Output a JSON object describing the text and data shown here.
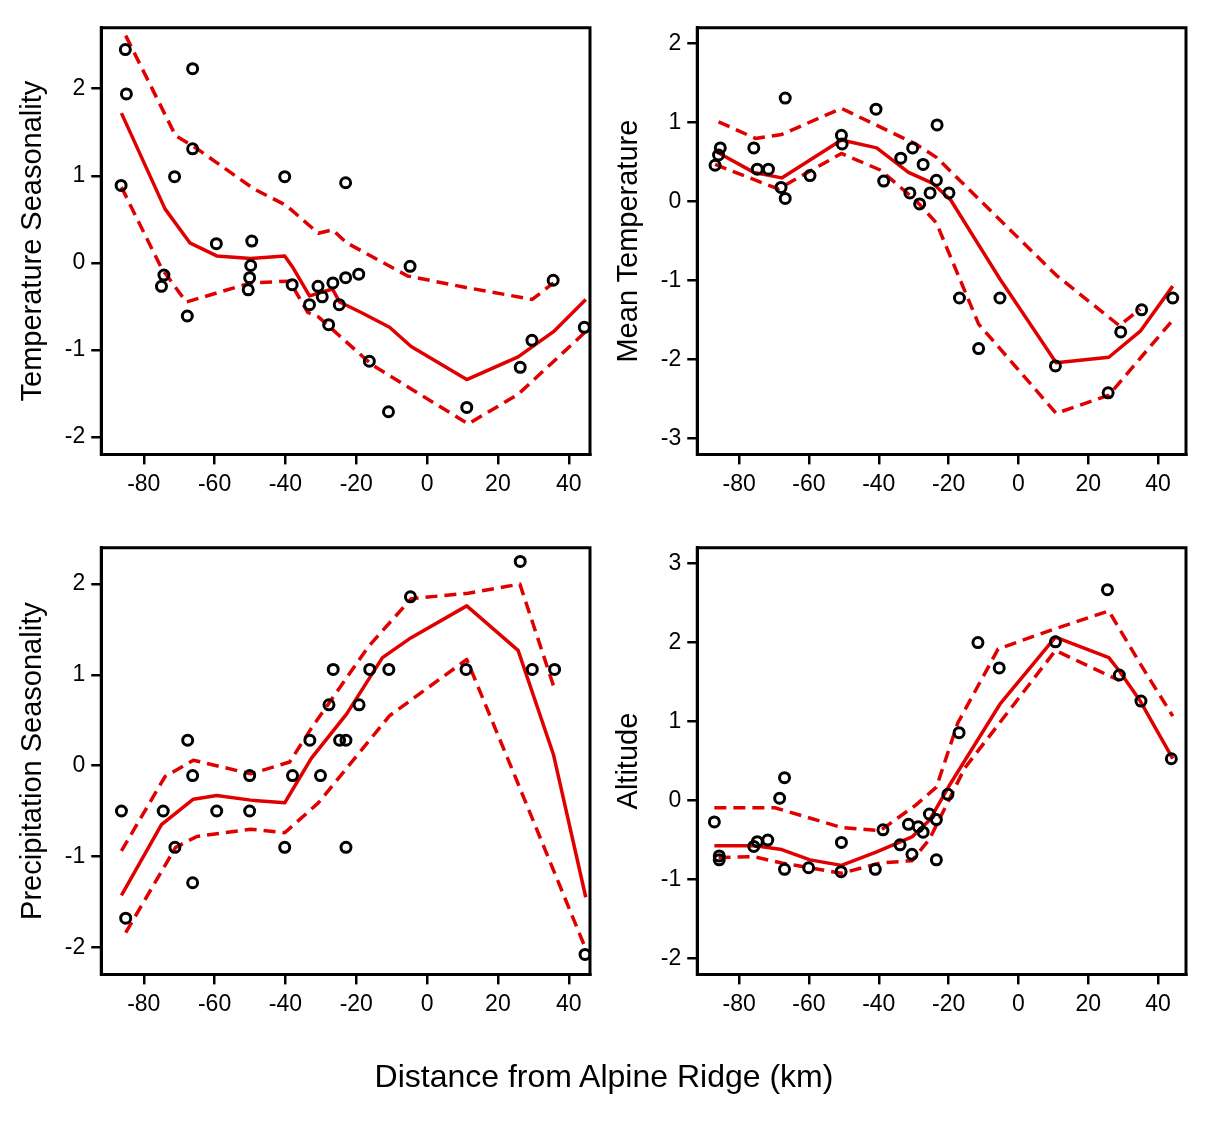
{
  "chart_data": [
    {
      "type": "scatter",
      "ylabel": "Temperature Seasonality",
      "xlim": [
        -92,
        46
      ],
      "ylim": [
        -2.2,
        2.7
      ],
      "xticks": [
        -80,
        -60,
        -40,
        -20,
        0,
        20,
        40
      ],
      "yticks": [
        -2,
        -1,
        0,
        1,
        2
      ],
      "grid": false,
      "legend": false,
      "series": [
        {
          "type": "scatter",
          "color": "#000000",
          "marker": "circle",
          "x": [
            -85.2,
            -84.9,
            -66.2,
            -66.2,
            -86.4,
            -71.3,
            -40.2,
            -23,
            -59.5,
            -49.5,
            -49.8,
            -50.1,
            -50.5,
            -74.3,
            -75,
            -67.7,
            -38.1,
            -30.8,
            -29.6,
            -26.6,
            -33.2,
            -24.8,
            -23,
            -19.3,
            -27.8,
            -16.3,
            -10.9,
            -4.8,
            11.2,
            26.3,
            29.6,
            35.6,
            44.4
          ],
          "values": [
            2.45,
            1.94,
            2.23,
            1.31,
            0.89,
            0.99,
            0.99,
            0.92,
            0.22,
            0.25,
            -0.03,
            -0.17,
            -0.31,
            -0.14,
            -0.27,
            -0.61,
            -0.25,
            -0.27,
            -0.39,
            -0.23,
            -0.48,
            -0.48,
            -0.17,
            -0.13,
            -0.71,
            -1.13,
            -1.71,
            -0.04,
            -1.66,
            -1.2,
            -0.89,
            -0.2,
            -0.74
          ]
        },
        {
          "type": "line",
          "color": "#e00000",
          "line_style": "solid",
          "marker": "none",
          "x": [
            -86.3,
            -74,
            -67,
            -59.4,
            -49.8,
            -40.2,
            -37.8,
            -33.2,
            -26.7,
            -24.7,
            -18.6,
            -10.6,
            -4.5,
            11.2,
            25.7,
            35.7,
            44.8
          ],
          "values": [
            1.72,
            0.62,
            0.23,
            0.08,
            0.05,
            0.08,
            -0.06,
            -0.38,
            -0.3,
            -0.45,
            -0.57,
            -0.74,
            -0.96,
            -1.34,
            -1.08,
            -0.79,
            -0.42
          ]
        },
        {
          "type": "line",
          "color": "#e00000",
          "line_style": "dashed",
          "marker": "none",
          "x": [
            -85.1,
            -71,
            -66,
            -48.9,
            -39.8,
            -30.7,
            -26.7,
            -22.7,
            -5.5,
            10.6,
            29.7,
            35.7
          ],
          "values": [
            2.61,
            1.46,
            1.34,
            0.85,
            0.66,
            0.34,
            0.38,
            0.23,
            -0.15,
            -0.28,
            -0.42,
            -0.23
          ]
        },
        {
          "type": "line",
          "color": "#e00000",
          "line_style": "dashed",
          "marker": "none",
          "x": [
            -86.3,
            -75,
            -68,
            -49.8,
            -38.8,
            -33.7,
            -30.7,
            -15.6,
            11.6,
            25.7,
            44.8
          ],
          "values": [
            0.87,
            -0.06,
            -0.45,
            -0.23,
            -0.21,
            -0.57,
            -0.62,
            -1.17,
            -1.85,
            -1.51,
            -0.79
          ]
        }
      ]
    },
    {
      "type": "scatter",
      "ylabel": "Mean Temperature",
      "xlim": [
        -92,
        48
      ],
      "ylim": [
        -3.2,
        2.2
      ],
      "xticks": [
        -80,
        -60,
        -40,
        -20,
        0,
        20,
        40
      ],
      "yticks": [
        -3,
        -2,
        -1,
        0,
        1,
        2
      ],
      "grid": false,
      "legend": false,
      "series": [
        {
          "type": "scatter",
          "color": "#000000",
          "marker": "circle",
          "x": [
            -86.9,
            -85.4,
            -85.9,
            -75.8,
            -74.8,
            -71.6,
            -66.8,
            -68,
            -66.8,
            -59.7,
            -50.7,
            -50.5,
            -40.8,
            -38.6,
            -33.7,
            -30.3,
            -31.1,
            -28.3,
            -27.3,
            -25.3,
            -23.5,
            -23.3,
            -19.9,
            -16.9,
            -11.4,
            -5.3,
            10.6,
            25.7,
            29.3,
            35.3,
            44.2
          ],
          "values": [
            0.46,
            0.68,
            0.59,
            0.68,
            0.41,
            0.41,
            1.31,
            0.18,
            0.04,
            0.33,
            0.84,
            0.73,
            1.17,
            0.26,
            0.55,
            0.68,
            0.11,
            -0.03,
            0.47,
            0.11,
            0.27,
            0.97,
            0.11,
            -1.22,
            -1.86,
            -1.22,
            -2.08,
            -2.42,
            -1.65,
            -1.37,
            -1.22
          ]
        },
        {
          "type": "line",
          "color": "#e00000",
          "line_style": "solid",
          "marker": "none",
          "x": [
            -86.9,
            -75.8,
            -67.8,
            -50.7,
            -40.6,
            -31.5,
            -24.5,
            -19.4,
            -5.3,
            10.8,
            25.9,
            34.9,
            44.2
          ],
          "values": [
            0.64,
            0.37,
            0.3,
            0.78,
            0.68,
            0.37,
            0.23,
            0.02,
            -0.98,
            -2.04,
            -1.97,
            -1.64,
            -1.07
          ]
        },
        {
          "type": "line",
          "color": "#e00000",
          "line_style": "dashed",
          "marker": "none",
          "x": [
            -85.9,
            -75.3,
            -67.8,
            -50.7,
            -29.5,
            -23.5,
            10.8,
            28.9,
            34.9
          ],
          "values": [
            1.01,
            0.8,
            0.85,
            1.18,
            0.73,
            0.56,
            -0.93,
            -1.57,
            -1.36
          ]
        },
        {
          "type": "line",
          "color": "#e00000",
          "line_style": "dashed",
          "marker": "none",
          "x": [
            -86.9,
            -68.8,
            -50.7,
            -39.6,
            -29.5,
            -23.5,
            -11.4,
            10.8,
            25.9,
            44.2
          ],
          "values": [
            0.47,
            0.16,
            0.61,
            0.4,
            0.02,
            -0.27,
            -1.55,
            -2.68,
            -2.45,
            -1.5
          ]
        }
      ]
    },
    {
      "type": "scatter",
      "ylabel": "Precipitation Seasonality",
      "xlabel": "Distance from Alpine Ridge (km)",
      "xlim": [
        -92,
        46
      ],
      "ylim": [
        -2.3,
        2.4
      ],
      "xticks": [
        -80,
        -60,
        -40,
        -20,
        0,
        20,
        40
      ],
      "yticks": [
        -2,
        -1,
        0,
        1,
        2
      ],
      "grid": false,
      "legend": false,
      "series": [
        {
          "type": "scatter",
          "color": "#000000",
          "marker": "circle",
          "x": [
            -86.3,
            -85.1,
            -74.5,
            -71.2,
            -67.6,
            -66.2,
            -66.2,
            -59.4,
            -50.1,
            -50.1,
            -40.2,
            -38,
            -33.1,
            -30.1,
            -27.7,
            -26.5,
            -24.7,
            -22.9,
            -22.9,
            -19.2,
            -16.2,
            -10.8,
            -4.7,
            11,
            26.3,
            29.7,
            36,
            44.6
          ],
          "values": [
            -0.5,
            -1.68,
            -0.5,
            -0.9,
            0.28,
            -0.11,
            -1.29,
            -0.5,
            -0.11,
            -0.5,
            -0.9,
            -0.11,
            0.28,
            -0.11,
            0.67,
            1.06,
            0.28,
            0.28,
            -0.9,
            0.67,
            1.06,
            1.06,
            1.86,
            1.06,
            2.25,
            1.06,
            1.06,
            -2.08
          ]
        },
        {
          "type": "line",
          "color": "#e00000",
          "line_style": "solid",
          "marker": "none",
          "x": [
            -86.3,
            -75,
            -66,
            -59.4,
            -49.8,
            -40.2,
            -32.7,
            -22.7,
            -12.6,
            -4.5,
            11.2,
            25.7,
            35.7,
            44.8
          ],
          "values": [
            -1.43,
            -0.65,
            -0.37,
            -0.33,
            -0.38,
            -0.41,
            0.08,
            0.57,
            1.19,
            1.41,
            1.76,
            1.27,
            0.12,
            -1.45
          ]
        },
        {
          "type": "line",
          "color": "#e00000",
          "line_style": "dashed",
          "marker": "none",
          "x": [
            -86.3,
            -74,
            -66,
            -49.8,
            -38.8,
            -32.7,
            -16.6,
            -4.5,
            11.6,
            26.2,
            35.7
          ],
          "values": [
            -0.94,
            -0.12,
            0.06,
            -0.09,
            0.04,
            0.41,
            1.31,
            1.84,
            1.9,
            2,
            0.88
          ]
        },
        {
          "type": "line",
          "color": "#e00000",
          "line_style": "dashed",
          "marker": "none",
          "x": [
            -85.1,
            -71,
            -65,
            -49.8,
            -40.2,
            -30.7,
            -10.6,
            11.2,
            25.7,
            44.8
          ],
          "values": [
            -1.84,
            -0.9,
            -0.78,
            -0.7,
            -0.74,
            -0.41,
            0.55,
            1.17,
            -0.2,
            -2.02
          ]
        }
      ]
    },
    {
      "type": "scatter",
      "ylabel": "Altitude",
      "xlim": [
        -92,
        48
      ],
      "ylim": [
        -2.2,
        3.2
      ],
      "xticks": [
        -80,
        -60,
        -40,
        -20,
        0,
        20,
        40
      ],
      "yticks": [
        -2,
        -1,
        0,
        1,
        2,
        3
      ],
      "grid": false,
      "legend": false,
      "series": [
        {
          "type": "scatter",
          "color": "#000000",
          "marker": "circle",
          "x": [
            -87.1,
            -85.7,
            -85.7,
            -75.8,
            -74.8,
            -71.8,
            -68.4,
            -67,
            -67,
            -60.1,
            -50.7,
            -50.8,
            -41,
            -38.8,
            -33.9,
            -31.5,
            -30.5,
            -28.7,
            -27.3,
            -25.5,
            -23.5,
            -23.5,
            -20.2,
            -17,
            -11.6,
            -5.5,
            10.6,
            25.5,
            28.9,
            35.1,
            43.8
          ],
          "values": [
            -0.27,
            -0.7,
            -0.75,
            -0.58,
            -0.52,
            -0.5,
            0.03,
            0.29,
            -0.87,
            -0.85,
            -0.53,
            -0.9,
            -0.87,
            -0.37,
            -0.56,
            -0.3,
            -0.68,
            -0.33,
            -0.4,
            -0.17,
            -0.24,
            -0.75,
            0.08,
            0.86,
            2,
            1.68,
            2.01,
            2.67,
            1.59,
            1.26,
            0.53
          ]
        },
        {
          "type": "line",
          "color": "#e00000",
          "line_style": "solid",
          "marker": "none",
          "x": [
            -87.1,
            -75.8,
            -67.8,
            -59.7,
            -50.7,
            -40.6,
            -30.5,
            -25.5,
            -19.4,
            -5.3,
            10.6,
            25.9,
            28.9,
            34.9,
            44.2
          ],
          "values": [
            -0.57,
            -0.57,
            -0.62,
            -0.75,
            -0.82,
            -0.65,
            -0.46,
            -0.25,
            0.22,
            1.22,
            2.07,
            1.81,
            1.64,
            1.26,
            0.53
          ]
        },
        {
          "type": "line",
          "color": "#e00000",
          "line_style": "dashed",
          "marker": "none",
          "x": [
            -87.1,
            -69.8,
            -50.7,
            -39.6,
            -29.5,
            -23.5,
            -17.4,
            -5.8,
            10.8,
            25.9,
            34.9,
            44.2
          ],
          "values": [
            -0.09,
            -0.09,
            -0.34,
            -0.38,
            -0.06,
            0.17,
            0.98,
            1.92,
            2.18,
            2.4,
            1.73,
            1.07
          ]
        },
        {
          "type": "line",
          "color": "#e00000",
          "line_style": "dashed",
          "marker": "none",
          "x": [
            -85.9,
            -75.8,
            -67.8,
            -50.7,
            -39.6,
            -30.5,
            -25.5,
            -15.4,
            10.6,
            28.9
          ],
          "values": [
            -0.72,
            -0.71,
            -0.79,
            -0.92,
            -0.79,
            -0.76,
            -0.49,
            0.41,
            1.9,
            1.52
          ]
        }
      ]
    }
  ]
}
